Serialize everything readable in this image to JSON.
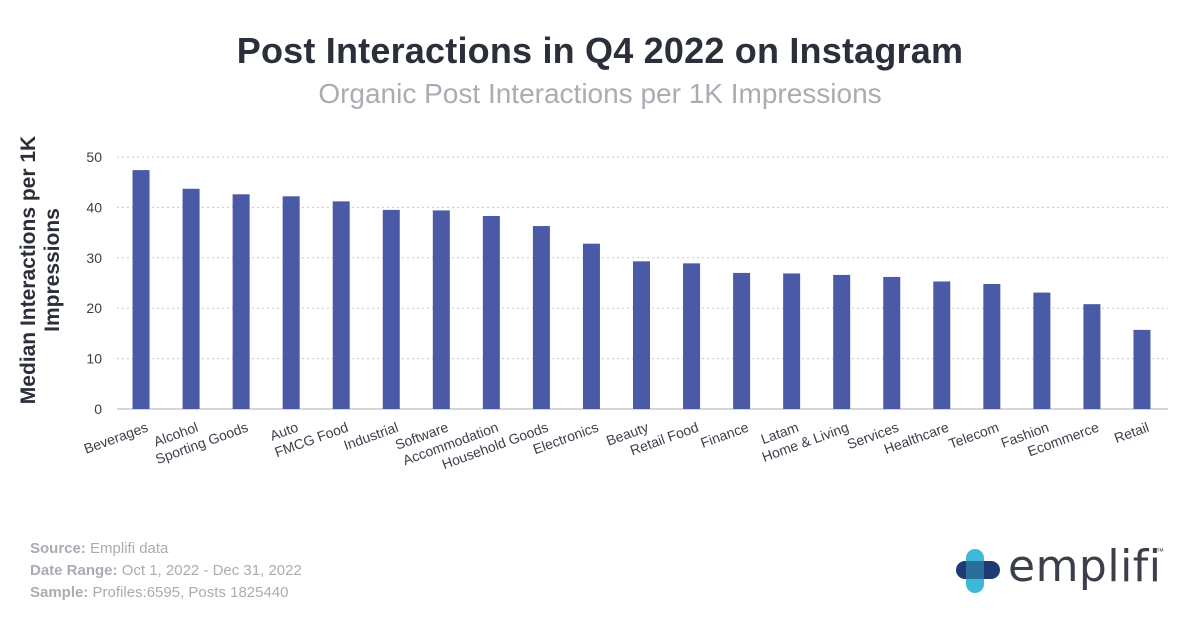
{
  "chart_data": {
    "type": "bar",
    "title": "Post Interactions in Q4 2022 on Instagram",
    "subtitle": "Organic Post Interactions per 1K Impressions",
    "ylabel": "Median Interactions per 1K Impressions",
    "xlabel": "",
    "categories": [
      "Beverages",
      "Alcohol",
      "Sporting Goods",
      "Auto",
      "FMCG Food",
      "Industrial",
      "Software",
      "Accommodation",
      "Household Goods",
      "Electronics",
      "Beauty",
      "Retail Food",
      "Finance",
      "Latam",
      "Home & Living",
      "Services",
      "Healthcare",
      "Telecom",
      "Fashion",
      "Ecommerce",
      "Retail"
    ],
    "values": [
      47.4,
      43.7,
      42.6,
      42.2,
      41.2,
      39.5,
      39.4,
      38.3,
      36.3,
      32.8,
      29.3,
      28.9,
      27.0,
      26.9,
      26.6,
      26.2,
      25.3,
      24.8,
      23.1,
      20.8,
      15.7
    ],
    "ylim": [
      0,
      50
    ],
    "yticks": [
      0,
      10,
      20,
      30,
      40,
      50
    ],
    "grid": true,
    "bar_color": "#4a5aa6"
  },
  "footer": {
    "source_label": "Source:",
    "source_value": "Emplifi data",
    "date_label": "Date Range:",
    "date_value": "Oct 1, 2022 - Dec 31, 2022",
    "sample_label": "Sample:",
    "sample_value": "Profiles:6595, Posts 1825440"
  },
  "logo": {
    "text": "emplifi",
    "tm": "™",
    "colors": {
      "cyan": "#3fb9d8",
      "navy": "#1f3b73",
      "teal": "#2a8aa6"
    }
  }
}
